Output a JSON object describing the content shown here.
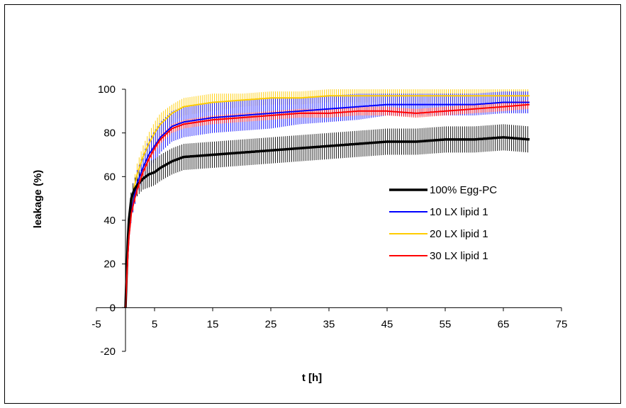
{
  "chart_data": {
    "type": "line",
    "xlabel": "t [h]",
    "ylabel": "leakage (%)",
    "xlim": [
      -5,
      75
    ],
    "ylim": [
      -20,
      100
    ],
    "xticks": [
      -5,
      5,
      15,
      25,
      35,
      45,
      55,
      65,
      75
    ],
    "yticks": [
      -20,
      0,
      20,
      40,
      60,
      80,
      100
    ],
    "grid": false,
    "legend_position": "right-middle",
    "series": [
      {
        "name": "100% Egg-PC",
        "color": "#000000",
        "bold": true,
        "x": [
          0,
          0.5,
          1,
          1.5,
          2,
          3,
          4,
          5,
          6,
          8,
          10,
          15,
          20,
          25,
          30,
          35,
          40,
          45,
          50,
          55,
          60,
          65,
          69.5
        ],
        "y": [
          0,
          38,
          50,
          54,
          56,
          59,
          61,
          62,
          64,
          67,
          69,
          70,
          71,
          72,
          73,
          74,
          75,
          76,
          76,
          77,
          77,
          78,
          77
        ],
        "err": [
          0,
          3,
          4,
          5,
          5,
          5,
          6,
          6,
          6,
          6,
          6,
          6,
          6,
          6,
          6,
          6,
          6,
          6,
          6,
          6,
          6,
          6,
          6
        ]
      },
      {
        "name": "10 LX lipid 1",
        "color": "#0000ff",
        "bold": false,
        "x": [
          0,
          0.5,
          1,
          1.5,
          2,
          3,
          4,
          5,
          6,
          8,
          10,
          15,
          20,
          25,
          30,
          35,
          40,
          45,
          50,
          55,
          60,
          65,
          69.5
        ],
        "y": [
          0,
          30,
          44,
          51,
          57,
          64,
          70,
          74,
          78,
          83,
          85,
          87,
          88,
          89,
          90,
          91,
          92,
          93,
          93,
          93,
          93,
          94,
          94
        ],
        "err": [
          0,
          3,
          4,
          5,
          6,
          6,
          7,
          7,
          7,
          7,
          7,
          7,
          7,
          7,
          6,
          6,
          6,
          5,
          5,
          5,
          5,
          5,
          5
        ]
      },
      {
        "name": "20 LX lipid 1",
        "color": "#ffcc00",
        "bold": false,
        "x": [
          0,
          0.5,
          1,
          1.5,
          2,
          3,
          4,
          5,
          6,
          8,
          10,
          15,
          20,
          25,
          30,
          35,
          40,
          45,
          50,
          55,
          60,
          65,
          69.5
        ],
        "y": [
          0,
          32,
          47,
          55,
          61,
          69,
          75,
          80,
          84,
          89,
          92,
          94,
          95,
          96,
          96,
          97,
          97,
          97,
          97,
          97,
          97,
          97,
          97
        ],
        "err": [
          0,
          3,
          4,
          4,
          5,
          5,
          5,
          5,
          5,
          4,
          4,
          4,
          3,
          3,
          3,
          3,
          3,
          3,
          3,
          3,
          3,
          3,
          3
        ]
      },
      {
        "name": "30 LX lipid 1",
        "color": "#ff0000",
        "bold": false,
        "x": [
          0,
          0.5,
          1,
          1.5,
          2,
          3,
          4,
          5,
          6,
          8,
          10,
          15,
          20,
          25,
          30,
          35,
          40,
          45,
          50,
          55,
          60,
          65,
          69.5
        ],
        "y": [
          0,
          30,
          43,
          49,
          54,
          62,
          68,
          73,
          77,
          82,
          84,
          86,
          87,
          88,
          89,
          89,
          90,
          90,
          89,
          90,
          91,
          92,
          93
        ],
        "err": [
          0,
          1,
          2,
          2,
          2,
          2,
          2,
          2,
          2,
          2,
          2,
          2,
          2,
          2,
          2,
          2,
          2,
          2,
          2,
          2,
          2,
          2,
          2
        ]
      }
    ]
  }
}
